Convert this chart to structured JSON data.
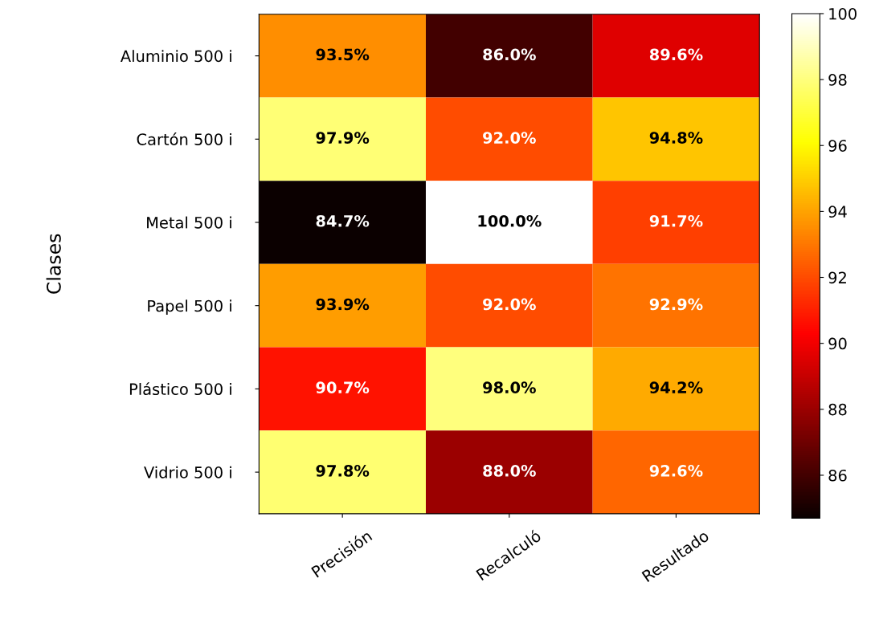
{
  "chart_data": {
    "type": "heatmap",
    "ylabel": "Clases",
    "categories": [
      "Precisión",
      "Recalculó",
      "Resultado"
    ],
    "y_categories": [
      "Aluminio 500 i",
      "Cartón 500 i",
      "Metal 500 i",
      "Papel 500 i",
      "Plástico 500 i",
      "Vidrio 500 i"
    ],
    "cells": [
      [
        93.5,
        86.0,
        89.6
      ],
      [
        97.9,
        92.0,
        94.8
      ],
      [
        84.7,
        100.0,
        91.7
      ],
      [
        93.9,
        92.0,
        92.9
      ],
      [
        90.7,
        98.0,
        94.2
      ],
      [
        97.8,
        88.0,
        92.6
      ]
    ],
    "cell_labels": [
      [
        "93.5%",
        "86.0%",
        "89.6%"
      ],
      [
        "97.9%",
        "92.0%",
        "94.8%"
      ],
      [
        "84.7%",
        "100.0%",
        "91.7%"
      ],
      [
        "93.9%",
        "92.0%",
        "92.9%"
      ],
      [
        "90.7%",
        "98.0%",
        "94.2%"
      ],
      [
        "97.8%",
        "88.0%",
        "92.6%"
      ]
    ],
    "clim": [
      84.7,
      100
    ],
    "cticks": [
      86,
      88,
      90,
      92,
      94,
      96,
      98,
      100
    ]
  }
}
